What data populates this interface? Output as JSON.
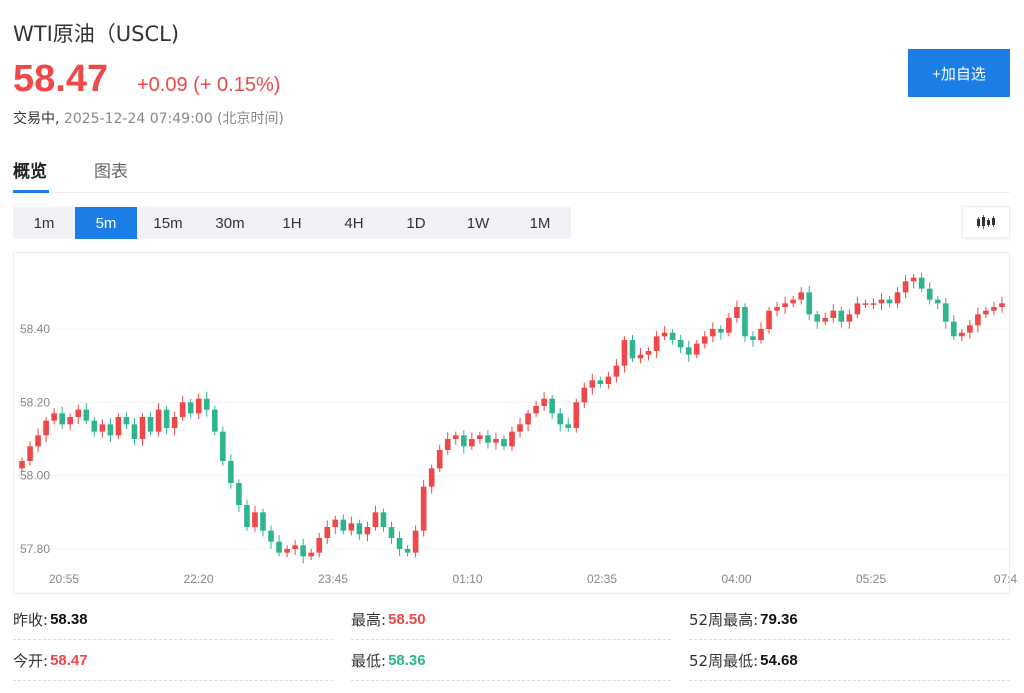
{
  "header": {
    "title": "WTI原油（USCL)",
    "price": "58.47",
    "change": "+0.09 (+ 0.15%)",
    "status": "交易中,",
    "timestamp": "2025-12-24 07:49:00 (北京时间)",
    "add_button": "+加自选"
  },
  "tabs": [
    {
      "label": "概览",
      "active": true
    },
    {
      "label": "图表",
      "active": false
    }
  ],
  "periods": [
    {
      "label": "1m",
      "active": false
    },
    {
      "label": "5m",
      "active": true
    },
    {
      "label": "15m",
      "active": false
    },
    {
      "label": "30m",
      "active": false
    },
    {
      "label": "1H",
      "active": false
    },
    {
      "label": "4H",
      "active": false
    },
    {
      "label": "1D",
      "active": false
    },
    {
      "label": "1W",
      "active": false
    },
    {
      "label": "1M",
      "active": false
    }
  ],
  "chart_type_icon": "candlestick-icon",
  "colors": {
    "up": "#f04848",
    "down": "#2fb58e",
    "accent": "#1a7ee6"
  },
  "chart_data": {
    "type": "candlestick",
    "x_ticks": [
      "20:55",
      "22:20",
      "23:45",
      "01:10",
      "02:35",
      "04:00",
      "05:25",
      "07:4"
    ],
    "y_ticks": [
      "58.40",
      "58.20",
      "58.00",
      "57.80"
    ],
    "y_tick_values": [
      58.4,
      58.2,
      58.0,
      57.8
    ],
    "ylim": [
      57.74,
      58.58
    ],
    "grid": true,
    "interval": "5m",
    "approx_closes": [
      58.04,
      58.08,
      58.11,
      58.15,
      58.17,
      58.14,
      58.16,
      58.18,
      58.15,
      58.12,
      58.14,
      58.11,
      58.16,
      58.14,
      58.1,
      58.16,
      58.12,
      58.18,
      58.13,
      58.16,
      58.2,
      58.17,
      58.21,
      58.18,
      58.12,
      58.04,
      57.98,
      57.92,
      57.86,
      57.9,
      57.85,
      57.82,
      57.79,
      57.8,
      57.81,
      57.78,
      57.79,
      57.83,
      57.86,
      57.88,
      57.85,
      57.87,
      57.84,
      57.86,
      57.9,
      57.86,
      57.83,
      57.8,
      57.79,
      57.85,
      57.97,
      58.02,
      58.07,
      58.1,
      58.11,
      58.08,
      58.1,
      58.11,
      58.09,
      58.1,
      58.08,
      58.12,
      58.14,
      58.17,
      58.19,
      58.21,
      58.17,
      58.14,
      58.13,
      58.2,
      58.24,
      58.26,
      58.25,
      58.27,
      58.3,
      58.37,
      58.32,
      58.33,
      58.34,
      58.38,
      58.39,
      58.37,
      58.35,
      58.33,
      58.36,
      58.38,
      58.4,
      58.39,
      58.43,
      58.46,
      58.38,
      58.37,
      58.4,
      58.45,
      58.46,
      58.47,
      58.48,
      58.5,
      58.44,
      58.42,
      58.43,
      58.45,
      58.42,
      58.44,
      58.47,
      58.47,
      58.47,
      58.48,
      58.47,
      58.5,
      58.53,
      58.54,
      58.51,
      58.48,
      58.47,
      58.42,
      58.38,
      58.39,
      58.41,
      58.44,
      58.45,
      58.46,
      58.47
    ]
  },
  "stats": [
    {
      "label": "昨收:",
      "value": "58.38",
      "color": "black"
    },
    {
      "label": "最高:",
      "value": "58.50",
      "color": "red"
    },
    {
      "label": "52周最高:",
      "value": "79.36",
      "color": "black"
    },
    {
      "label": "今开:",
      "value": "58.47",
      "color": "red"
    },
    {
      "label": "最低:",
      "value": "58.36",
      "color": "green"
    },
    {
      "label": "52周最低:",
      "value": "54.68",
      "color": "black"
    }
  ]
}
